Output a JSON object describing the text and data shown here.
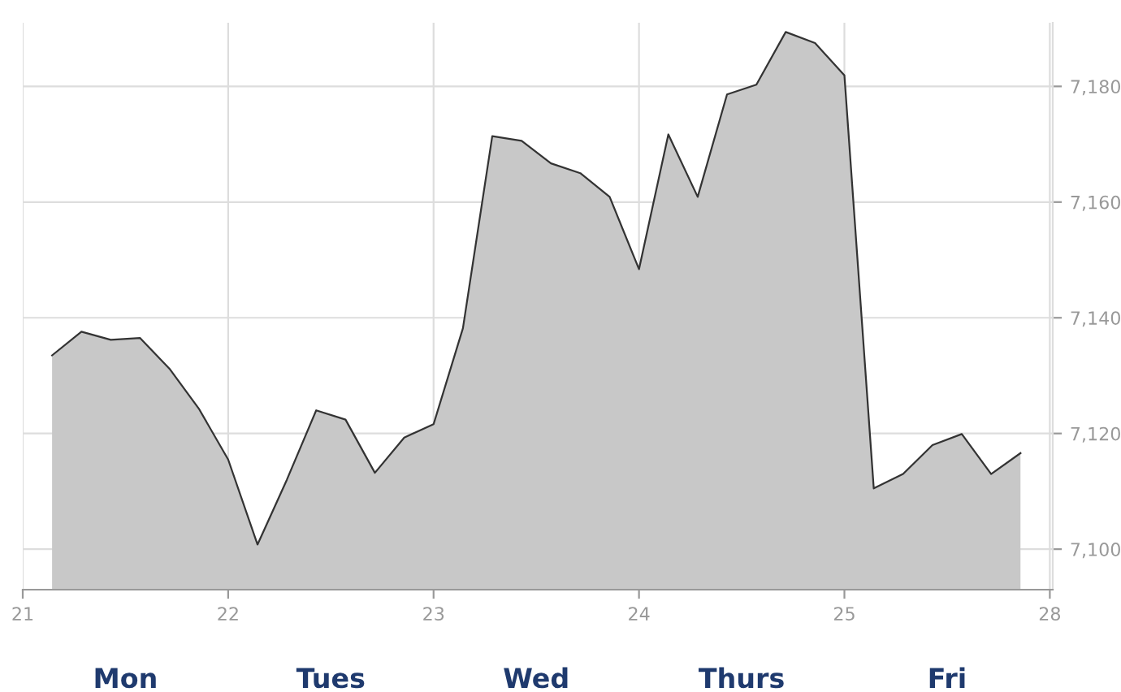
{
  "chart_data": {
    "type": "area",
    "categories": [
      "21",
      null,
      null,
      null,
      null,
      null,
      null,
      "22",
      null,
      null,
      null,
      null,
      null,
      null,
      "23",
      null,
      null,
      null,
      null,
      null,
      null,
      "24",
      null,
      null,
      null,
      null,
      null,
      null,
      "25",
      null,
      null,
      null,
      null,
      null,
      null,
      "28"
    ],
    "series": [
      {
        "color": "#c8c8c8",
        "values": [
          null,
          7133.5,
          7137.6,
          7136.2,
          7136.5,
          7131.2,
          7124.3,
          7115.5,
          7100.8,
          7112,
          7124.0,
          7122.4,
          7113.2,
          7119.3,
          7121.6,
          7138.2,
          7171.4,
          7170.6,
          7166.7,
          7165.0,
          7160.9,
          7148.4,
          7171.7,
          7160.9,
          7178.6,
          7180.3,
          7189.4,
          7187.5,
          7181.9,
          7110.5,
          7113.0,
          7118.0,
          7119.9,
          7113.0,
          7116.6,
          null
        ]
      }
    ],
    "ylim": [
      7093,
      7191
    ],
    "yticks": [
      {
        "value": 7100,
        "label": "7,100"
      },
      {
        "value": 7120,
        "label": "7,120"
      },
      {
        "value": 7140,
        "label": "7,140"
      },
      {
        "value": 7160,
        "label": "7,160"
      },
      {
        "value": 7180,
        "label": "7,180"
      }
    ],
    "grid": true,
    "annotations": [
      "Mon",
      "Tues",
      "Wed",
      "Thurs",
      "Fri"
    ]
  }
}
